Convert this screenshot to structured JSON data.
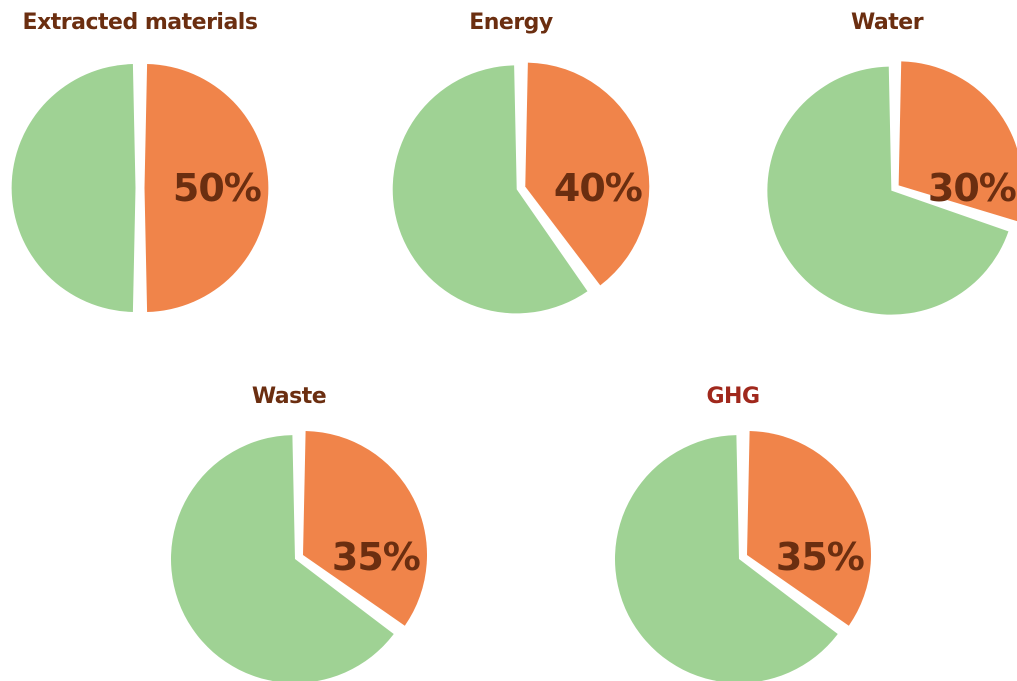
{
  "colors": {
    "highlight": "#F0844A",
    "remainder": "#9FD294",
    "separator": "#FFFFFF",
    "title": "#6B2E10",
    "ghg_title": "#A0281C",
    "label": "#6B2E10"
  },
  "chart_data": [
    {
      "type": "pie",
      "title": "Extracted materials",
      "value": 50,
      "label": "50%",
      "slices": [
        {
          "value": 50
        },
        {
          "value": 50
        }
      ]
    },
    {
      "type": "pie",
      "title": "Energy",
      "value": 40,
      "label": "40%",
      "slices": [
        {
          "value": 40
        },
        {
          "value": 60
        }
      ]
    },
    {
      "type": "pie",
      "title": "Water",
      "value": 30,
      "label": "30%",
      "slices": [
        {
          "value": 30
        },
        {
          "value": 70
        }
      ]
    },
    {
      "type": "pie",
      "title": "Waste",
      "value": 35,
      "label": "35%",
      "slices": [
        {
          "value": 35
        },
        {
          "value": 65
        }
      ]
    },
    {
      "type": "pie",
      "title": "GHG",
      "value": 35,
      "label": "35%",
      "slices": [
        {
          "value": 35
        },
        {
          "value": 65
        }
      ]
    }
  ]
}
